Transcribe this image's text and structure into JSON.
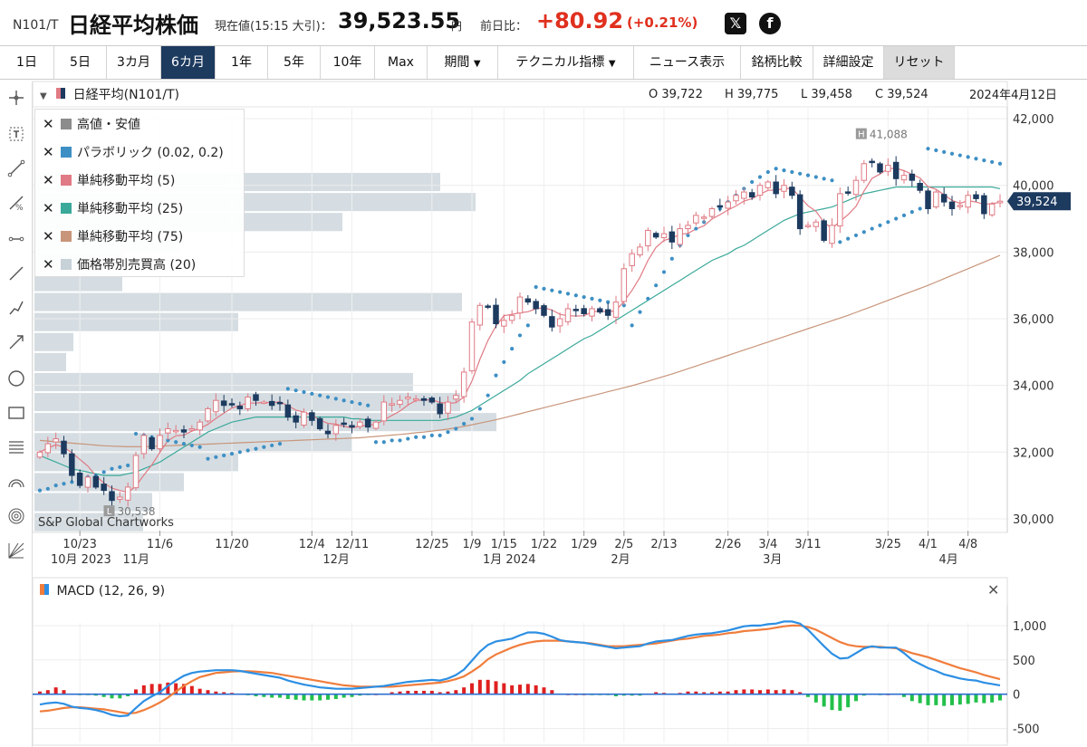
{
  "header": {
    "code": "N101/T",
    "name": "日経平均株価",
    "current_label": "現在値(15:15 大引)：",
    "price": "39,523.55",
    "yen": "円",
    "change_label": "前日比：",
    "change": "+80.92",
    "change_pct": "(+0.21%)",
    "x_icon": "x-logo-icon",
    "fb_icon": "facebook-logo-icon"
  },
  "toolbar": {
    "periods": [
      "1日",
      "5日",
      "3カ月",
      "6カ月",
      "1年",
      "5年",
      "10年",
      "Max"
    ],
    "active_period": "6カ月",
    "kikan": "期間",
    "technical": "テクニカル指標",
    "news": "ニュース表示",
    "compare": "銘柄比較",
    "detail": "詳細設定",
    "reset": "リセット"
  },
  "legend": {
    "series": "日経平均(N101/T)",
    "o": "O 39,722",
    "h": "H 39,775",
    "l": "L 39,458",
    "c": "C 39,524",
    "date": "2024年4月12日"
  },
  "indicators": [
    {
      "label": "高値・安値",
      "color": "#8c8c8c"
    },
    {
      "label": "パラボリック (0.02, 0.2)",
      "color": "#3d8fc4"
    },
    {
      "label": "単純移動平均 (5)",
      "color": "#e07a84"
    },
    {
      "label": "単純移動平均 (25)",
      "color": "#3aa99a"
    },
    {
      "label": "単純移動平均 (75)",
      "color": "#c8957a"
    },
    {
      "label": "価格帯別売買高 (20)",
      "color": "#c7d1d8"
    }
  ],
  "credit": "S&P Global Chartworks",
  "colors": {
    "up": "#e07a84",
    "down": "#1d3a5f",
    "psar": "#3d8fc4",
    "sma5": "#e07a84",
    "sma25": "#3aa99a",
    "sma75": "#c8957a",
    "vbp": "#c7d1d8",
    "macd": "#2d8fe3",
    "signal": "#f07d3c",
    "hist_up": "#e02020",
    "hist_down": "#22c04a",
    "accent": "#1d3a5f"
  },
  "chart_data": [
    {
      "type": "candlestick",
      "title": "日経平均(N101/T)",
      "ylim": [
        29700,
        42300
      ],
      "yticks": [
        "30,000",
        "32,000",
        "34,000",
        "36,000",
        "38,000",
        "40,000",
        "42,000"
      ],
      "last_price_label": "39,524",
      "high_marker": "41,088",
      "low_marker": "30,538",
      "xticks": [
        {
          "label": "10/23",
          "day": 5
        },
        {
          "label": "11/6",
          "day": 15
        },
        {
          "label": "11/20",
          "day": 24
        },
        {
          "label": "12/4",
          "day": 34
        },
        {
          "label": "12/11",
          "day": 39
        },
        {
          "label": "12/25",
          "day": 49
        },
        {
          "label": "1/9",
          "day": 54
        },
        {
          "label": "1/15",
          "day": 58
        },
        {
          "label": "1/22",
          "day": 63
        },
        {
          "label": "1/29",
          "day": 68
        },
        {
          "label": "2/5",
          "day": 73
        },
        {
          "label": "2/13",
          "day": 78
        },
        {
          "label": "2/26",
          "day": 86
        },
        {
          "label": "3/4",
          "day": 91
        },
        {
          "label": "3/11",
          "day": 96
        },
        {
          "label": "3/25",
          "day": 106
        },
        {
          "label": "4/1",
          "day": 111
        },
        {
          "label": "4/8",
          "day": 116
        }
      ],
      "months": [
        {
          "label": "10月 2023",
          "day": 0
        },
        {
          "label": "11月",
          "day": 9
        },
        {
          "label": "12月",
          "day": 34
        },
        {
          "label": "1月 2024",
          "day": 54
        },
        {
          "label": "2月",
          "day": 70
        },
        {
          "label": "3月",
          "day": 89
        },
        {
          "label": "4月",
          "day": 111
        }
      ],
      "close": [
        32000,
        32250,
        32400,
        31950,
        31300,
        31000,
        31250,
        30950,
        30850,
        30550,
        30650,
        30950,
        31900,
        32500,
        32100,
        32500,
        32700,
        32650,
        32600,
        32700,
        32900,
        33300,
        33550,
        33400,
        33450,
        33300,
        33650,
        33550,
        33500,
        33400,
        33450,
        33050,
        32900,
        33200,
        32950,
        32700,
        32550,
        32800,
        32850,
        32750,
        32900,
        32750,
        32900,
        33500,
        33450,
        33550,
        33650,
        33600,
        33550,
        33500,
        33150,
        33500,
        33700,
        34400,
        35900,
        36400,
        36350,
        35850,
        35950,
        36100,
        36650,
        36500,
        36300,
        36100,
        35750,
        36000,
        36300,
        36250,
        36150,
        36300,
        36200,
        36100,
        36500,
        37500,
        37950,
        38150,
        38650,
        38450,
        38550,
        38300,
        38700,
        38800,
        39100,
        39050,
        39300,
        39350,
        39500,
        39700,
        39800,
        39650,
        40000,
        40100,
        39750,
        40000,
        39700,
        38700,
        38800,
        38900,
        38350,
        38800,
        39750,
        39800,
        40150,
        40650,
        40700,
        40400,
        40600,
        40200,
        40300,
        40150,
        39850,
        39300,
        39800,
        39500,
        39300,
        39400,
        39700,
        39600,
        39150,
        39440,
        39524
      ],
      "psar": [
        30850,
        30900,
        31000,
        31050,
        31100,
        31150,
        31250,
        31300,
        31400,
        31500,
        31550,
        31600,
        32550,
        32500,
        32450,
        32400,
        32350,
        32300,
        32250,
        32200,
        32150,
        31800,
        31850,
        31900,
        31950,
        32000,
        32050,
        32100,
        32150,
        32200,
        32250,
        33900,
        33850,
        33800,
        33750,
        33700,
        33650,
        33600,
        33550,
        33500,
        33450,
        33400,
        32300,
        32300,
        32350,
        32350,
        32400,
        32450,
        32450,
        32500,
        32500,
        32600,
        32700,
        32850,
        33000,
        33300,
        33700,
        34300,
        34700,
        35100,
        35500,
        35800,
        36950,
        36900,
        36850,
        36800,
        36750,
        36700,
        36650,
        36600,
        36550,
        36500,
        36450,
        36400,
        35800,
        36200,
        36600,
        37000,
        37400,
        37800,
        38200,
        38500,
        38700,
        38900,
        39100,
        39300,
        39500,
        39700,
        39900,
        40100,
        40250,
        40400,
        40500,
        40450,
        40400,
        40350,
        40300,
        40250,
        40200,
        40150,
        38300,
        38400,
        38500,
        38600,
        38700,
        38800,
        38900,
        39000,
        39100,
        39200,
        39300,
        41100,
        41050,
        41000,
        40950,
        40900,
        40850,
        40800,
        40750,
        40700,
        40650
      ],
      "sma25": [
        31900,
        31800,
        31700,
        31600,
        31500,
        31450,
        31400,
        31350,
        31300,
        31300,
        31300,
        31350,
        31400,
        31500,
        31600,
        31700,
        31850,
        32000,
        32150,
        32300,
        32450,
        32600,
        32700,
        32800,
        32900,
        32950,
        33000,
        33050,
        33050,
        33050,
        33050,
        33050,
        33050,
        33050,
        33050,
        33050,
        33050,
        33050,
        33050,
        33000,
        33000,
        32950,
        32950,
        32950,
        32950,
        32950,
        32950,
        32950,
        32950,
        32950,
        32950,
        33000,
        33050,
        33150,
        33250,
        33400,
        33550,
        33700,
        33850,
        34000,
        34150,
        34350,
        34500,
        34650,
        34800,
        34950,
        35100,
        35250,
        35400,
        35500,
        35650,
        35800,
        35950,
        36100,
        36250,
        36400,
        36550,
        36700,
        36850,
        37000,
        37150,
        37300,
        37450,
        37600,
        37750,
        37850,
        37950,
        38100,
        38200,
        38350,
        38500,
        38650,
        38800,
        38950,
        39050,
        39150,
        39200,
        39250,
        39300,
        39350,
        39450,
        39550,
        39650,
        39750,
        39800,
        39850,
        39900,
        39950,
        39950,
        39950,
        39950,
        39950,
        39950,
        39950,
        39950,
        39950,
        39950,
        39950,
        39950,
        39950,
        39900
      ],
      "sma75": [
        32350,
        32330,
        32310,
        32290,
        32270,
        32250,
        32230,
        32210,
        32190,
        32180,
        32170,
        32160,
        32160,
        32160,
        32170,
        32180,
        32190,
        32200,
        32210,
        32220,
        32230,
        32240,
        32250,
        32260,
        32270,
        32280,
        32290,
        32300,
        32310,
        32320,
        32330,
        32340,
        32350,
        32360,
        32370,
        32380,
        32390,
        32400,
        32410,
        32420,
        32430,
        32450,
        32470,
        32490,
        32510,
        32530,
        32550,
        32580,
        32600,
        32630,
        32660,
        32690,
        32730,
        32770,
        32820,
        32870,
        32920,
        32970,
        33030,
        33090,
        33150,
        33210,
        33270,
        33330,
        33390,
        33450,
        33510,
        33570,
        33630,
        33690,
        33750,
        33810,
        33870,
        33930,
        33990,
        34060,
        34130,
        34200,
        34270,
        34340,
        34420,
        34500,
        34580,
        34660,
        34740,
        34820,
        34900,
        34980,
        35060,
        35140,
        35220,
        35300,
        35380,
        35460,
        35540,
        35620,
        35700,
        35780,
        35860,
        35940,
        36020,
        36100,
        36190,
        36280,
        36370,
        36460,
        36550,
        36640,
        36730,
        36820,
        36910,
        37000,
        37100,
        37200,
        37300,
        37400,
        37500,
        37600,
        37700,
        37800,
        37900
      ],
      "vbp": [
        {
          "price": 29900,
          "width": 120
        },
        {
          "price": 30500,
          "width": 130
        },
        {
          "price": 31100,
          "width": 165
        },
        {
          "price": 31700,
          "width": 225
        },
        {
          "price": 32300,
          "width": 350
        },
        {
          "price": 32900,
          "width": 510
        },
        {
          "price": 33500,
          "width": 470
        },
        {
          "price": 34100,
          "width": 418
        },
        {
          "price": 34700,
          "width": 35
        },
        {
          "price": 35300,
          "width": 43
        },
        {
          "price": 35900,
          "width": 225
        },
        {
          "price": 36500,
          "width": 472
        },
        {
          "price": 37100,
          "width": 97
        },
        {
          "price": 37700,
          "width": 100
        },
        {
          "price": 38300,
          "width": 160
        },
        {
          "price": 38900,
          "width": 340
        },
        {
          "price": 39500,
          "width": 487
        },
        {
          "price": 40100,
          "width": 448
        }
      ]
    },
    {
      "type": "line",
      "title": "MACD (12, 26, 9)",
      "ylim": [
        -650,
        1250
      ],
      "yticks": [
        "1,000",
        "500",
        "0",
        "-500"
      ],
      "series": [
        {
          "name": "MACD",
          "values": [
            -150,
            -130,
            -120,
            -140,
            -180,
            -200,
            -210,
            -230,
            -260,
            -300,
            -320,
            -310,
            -200,
            -100,
            -30,
            30,
            120,
            200,
            270,
            310,
            330,
            340,
            350,
            350,
            350,
            340,
            320,
            300,
            280,
            260,
            240,
            200,
            170,
            140,
            120,
            100,
            90,
            80,
            80,
            80,
            90,
            100,
            110,
            120,
            140,
            160,
            180,
            190,
            200,
            210,
            200,
            230,
            280,
            360,
            490,
            620,
            720,
            770,
            790,
            810,
            860,
            900,
            900,
            880,
            840,
            790,
            770,
            760,
            750,
            730,
            710,
            690,
            670,
            680,
            690,
            700,
            740,
            770,
            780,
            790,
            820,
            850,
            870,
            880,
            890,
            910,
            930,
            960,
            990,
            1000,
            1000,
            1020,
            1030,
            1060,
            1060,
            1030,
            940,
            820,
            700,
            590,
            520,
            530,
            600,
            670,
            700,
            680,
            680,
            680,
            600,
            500,
            440,
            380,
            340,
            290,
            260,
            230,
            210,
            200,
            170,
            150,
            130
          ]
        },
        {
          "name": "Signal",
          "values": [
            -250,
            -240,
            -220,
            -200,
            -190,
            -190,
            -200,
            -210,
            -220,
            -240,
            -260,
            -280,
            -270,
            -230,
            -180,
            -120,
            -50,
            40,
            120,
            190,
            250,
            280,
            310,
            320,
            330,
            335,
            335,
            330,
            320,
            310,
            290,
            270,
            250,
            230,
            210,
            190,
            170,
            150,
            130,
            120,
            110,
            110,
            110,
            110,
            110,
            120,
            130,
            140,
            150,
            160,
            170,
            190,
            220,
            260,
            330,
            410,
            510,
            580,
            630,
            680,
            720,
            750,
            770,
            780,
            780,
            780,
            770,
            760,
            750,
            740,
            720,
            700,
            700,
            700,
            710,
            720,
            730,
            740,
            760,
            780,
            800,
            810,
            830,
            850,
            860,
            870,
            890,
            900,
            920,
            930,
            940,
            950,
            970,
            990,
            1000,
            1000,
            980,
            940,
            880,
            820,
            760,
            720,
            700,
            690,
            690,
            690,
            680,
            670,
            640,
            600,
            570,
            540,
            500,
            460,
            420,
            380,
            350,
            320,
            280,
            250,
            220
          ]
        }
      ],
      "histogram": [
        40,
        60,
        100,
        60,
        10,
        -10,
        -10,
        -20,
        -40,
        -60,
        -60,
        -30,
        70,
        130,
        150,
        150,
        170,
        160,
        150,
        120,
        80,
        60,
        40,
        30,
        20,
        5,
        -15,
        -30,
        -40,
        -50,
        -50,
        -70,
        -80,
        -90,
        -90,
        -90,
        -80,
        -70,
        -50,
        -40,
        -20,
        -10,
        0,
        10,
        30,
        40,
        50,
        50,
        50,
        50,
        30,
        40,
        60,
        100,
        160,
        210,
        210,
        190,
        160,
        130,
        140,
        150,
        130,
        100,
        60,
        10,
        0,
        0,
        0,
        -10,
        -10,
        -10,
        -30,
        -20,
        -20,
        -20,
        10,
        30,
        20,
        10,
        20,
        40,
        40,
        30,
        30,
        40,
        40,
        60,
        70,
        70,
        60,
        70,
        60,
        70,
        60,
        30,
        -40,
        -120,
        -180,
        -230,
        -240,
        -190,
        -100,
        -20,
        10,
        -10,
        0,
        10,
        -40,
        -100,
        -130,
        -160,
        -160,
        -170,
        -160,
        -150,
        -140,
        -120,
        -130,
        -120,
        -90
      ]
    }
  ]
}
